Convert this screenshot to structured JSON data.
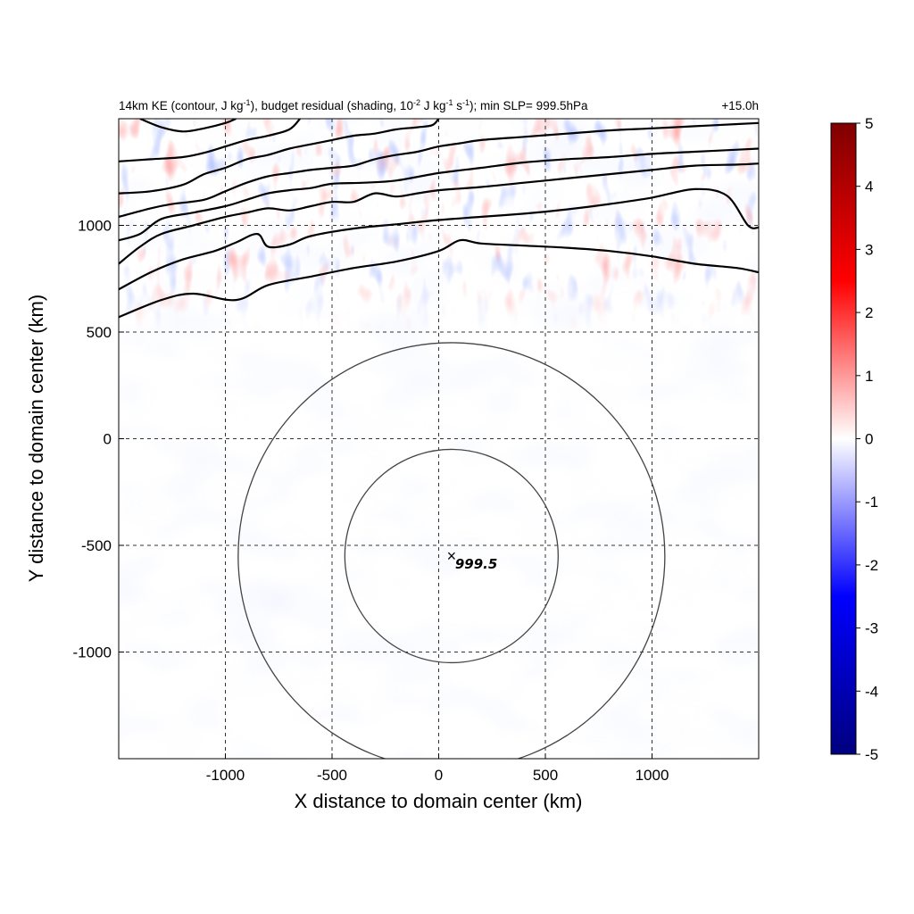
{
  "chart_data": {
    "type": "heatmap",
    "title_parts": [
      "14km KE (contour, J kg",
      "-1",
      "), budget residual (shading, 10",
      "-2",
      " J kg",
      "-1",
      " s",
      "-1",
      "); min SLP= 999.5hPa"
    ],
    "title_right": "+15.0h",
    "xlabel": "X distance to domain center (km)",
    "ylabel": "Y distance to domain center (km)",
    "xlim": [
      -1500,
      1500
    ],
    "ylim": [
      -1500,
      1500
    ],
    "x_ticks": [
      -1000,
      -500,
      0,
      500,
      1000
    ],
    "y_ticks": [
      -1000,
      -500,
      0,
      500,
      1000
    ],
    "grid": true,
    "colorbar": {
      "min": -5,
      "max": 5,
      "ticks": [
        5,
        4,
        3,
        2,
        1,
        0,
        -1,
        -2,
        -3,
        -4,
        -5
      ],
      "colors": [
        "#00007f",
        "#0000ff",
        "#ffffff",
        "#ff0000",
        "#7f0000"
      ]
    },
    "center_marker": {
      "x": 60,
      "y": -550,
      "symbol": "×",
      "label": "999.5"
    },
    "range_circles": [
      {
        "x": 60,
        "y": -550,
        "radius": 500
      },
      {
        "x": 60,
        "y": -550,
        "radius": 1000
      }
    ],
    "ke_contours": [
      [
        [
          -1500,
          570
        ],
        [
          -1300,
          650
        ],
        [
          -1150,
          680
        ],
        [
          -950,
          650
        ],
        [
          -800,
          720
        ],
        [
          -600,
          760
        ],
        [
          -400,
          800
        ],
        [
          -200,
          830
        ],
        [
          0,
          880
        ],
        [
          100,
          930
        ],
        [
          200,
          915
        ],
        [
          400,
          905
        ],
        [
          600,
          895
        ],
        [
          800,
          880
        ],
        [
          1000,
          855
        ],
        [
          1200,
          820
        ],
        [
          1400,
          800
        ],
        [
          1500,
          780
        ]
      ],
      [
        [
          -1500,
          700
        ],
        [
          -1350,
          780
        ],
        [
          -1200,
          840
        ],
        [
          -1050,
          880
        ],
        [
          -950,
          920
        ],
        [
          -850,
          960
        ],
        [
          -800,
          900
        ],
        [
          -700,
          910
        ],
        [
          -600,
          950
        ],
        [
          -400,
          985
        ],
        [
          -200,
          1005
        ],
        [
          0,
          1025
        ],
        [
          200,
          1040
        ],
        [
          400,
          1055
        ],
        [
          600,
          1075
        ],
        [
          800,
          1100
        ],
        [
          1000,
          1130
        ],
        [
          1200,
          1170
        ],
        [
          1350,
          1140
        ],
        [
          1450,
          1000
        ],
        [
          1500,
          990
        ]
      ],
      [
        [
          -1500,
          820
        ],
        [
          -1400,
          900
        ],
        [
          -1300,
          960
        ],
        [
          -1150,
          1000
        ],
        [
          -1000,
          1040
        ],
        [
          -900,
          1060
        ],
        [
          -800,
          1080
        ],
        [
          -700,
          1070
        ],
        [
          -600,
          1090
        ],
        [
          -500,
          1110
        ],
        [
          -400,
          1110
        ],
        [
          -300,
          1150
        ],
        [
          -200,
          1135
        ],
        [
          -100,
          1150
        ],
        [
          0,
          1165
        ],
        [
          200,
          1180
        ],
        [
          400,
          1200
        ],
        [
          600,
          1220
        ],
        [
          800,
          1240
        ],
        [
          1000,
          1260
        ],
        [
          1200,
          1280
        ],
        [
          1400,
          1285
        ],
        [
          1500,
          1290
        ]
      ],
      [
        [
          -1500,
          930
        ],
        [
          -1400,
          960
        ],
        [
          -1300,
          1030
        ],
        [
          -1150,
          1060
        ],
        [
          -1000,
          1090
        ],
        [
          -900,
          1120
        ],
        [
          -800,
          1150
        ],
        [
          -700,
          1165
        ],
        [
          -600,
          1175
        ],
        [
          -500,
          1195
        ],
        [
          -350,
          1200
        ],
        [
          -200,
          1210
        ],
        [
          0,
          1245
        ],
        [
          200,
          1270
        ],
        [
          400,
          1295
        ],
        [
          600,
          1310
        ],
        [
          800,
          1320
        ],
        [
          1000,
          1335
        ],
        [
          1200,
          1345
        ],
        [
          1400,
          1355
        ],
        [
          1500,
          1360
        ]
      ],
      [
        [
          -1500,
          1040
        ],
        [
          -1350,
          1080
        ],
        [
          -1250,
          1100
        ],
        [
          -1100,
          1120
        ],
        [
          -1000,
          1160
        ],
        [
          -900,
          1200
        ],
        [
          -800,
          1230
        ],
        [
          -700,
          1245
        ],
        [
          -600,
          1260
        ],
        [
          -500,
          1270
        ],
        [
          -400,
          1280
        ],
        [
          -300,
          1310
        ],
        [
          -200,
          1330
        ],
        [
          -100,
          1345
        ],
        [
          0,
          1370
        ],
        [
          100,
          1385
        ],
        [
          200,
          1400
        ],
        [
          400,
          1415
        ],
        [
          600,
          1430
        ],
        [
          800,
          1445
        ],
        [
          1000,
          1455
        ],
        [
          1200,
          1465
        ],
        [
          1400,
          1475
        ],
        [
          1500,
          1480
        ]
      ],
      [
        [
          -1500,
          1150
        ],
        [
          -1350,
          1160
        ],
        [
          -1200,
          1190
        ],
        [
          -1100,
          1240
        ],
        [
          -1000,
          1270
        ],
        [
          -900,
          1310
        ],
        [
          -800,
          1330
        ],
        [
          -700,
          1360
        ],
        [
          -600,
          1380
        ],
        [
          -500,
          1400
        ],
        [
          -400,
          1420
        ],
        [
          -300,
          1430
        ],
        [
          -200,
          1450
        ],
        [
          -100,
          1460
        ],
        [
          -30,
          1470
        ],
        [
          0,
          1500
        ]
      ],
      [
        [
          -1500,
          1300
        ],
        [
          -1350,
          1310
        ],
        [
          -1200,
          1320
        ],
        [
          -1100,
          1340
        ],
        [
          -1000,
          1370
        ],
        [
          -900,
          1400
        ],
        [
          -800,
          1420
        ],
        [
          -700,
          1450
        ],
        [
          -650,
          1500
        ]
      ],
      [
        [
          -1400,
          1500
        ],
        [
          -1300,
          1460
        ],
        [
          -1200,
          1440
        ],
        [
          -1100,
          1455
        ],
        [
          -1000,
          1480
        ],
        [
          -950,
          1500
        ]
      ]
    ]
  }
}
